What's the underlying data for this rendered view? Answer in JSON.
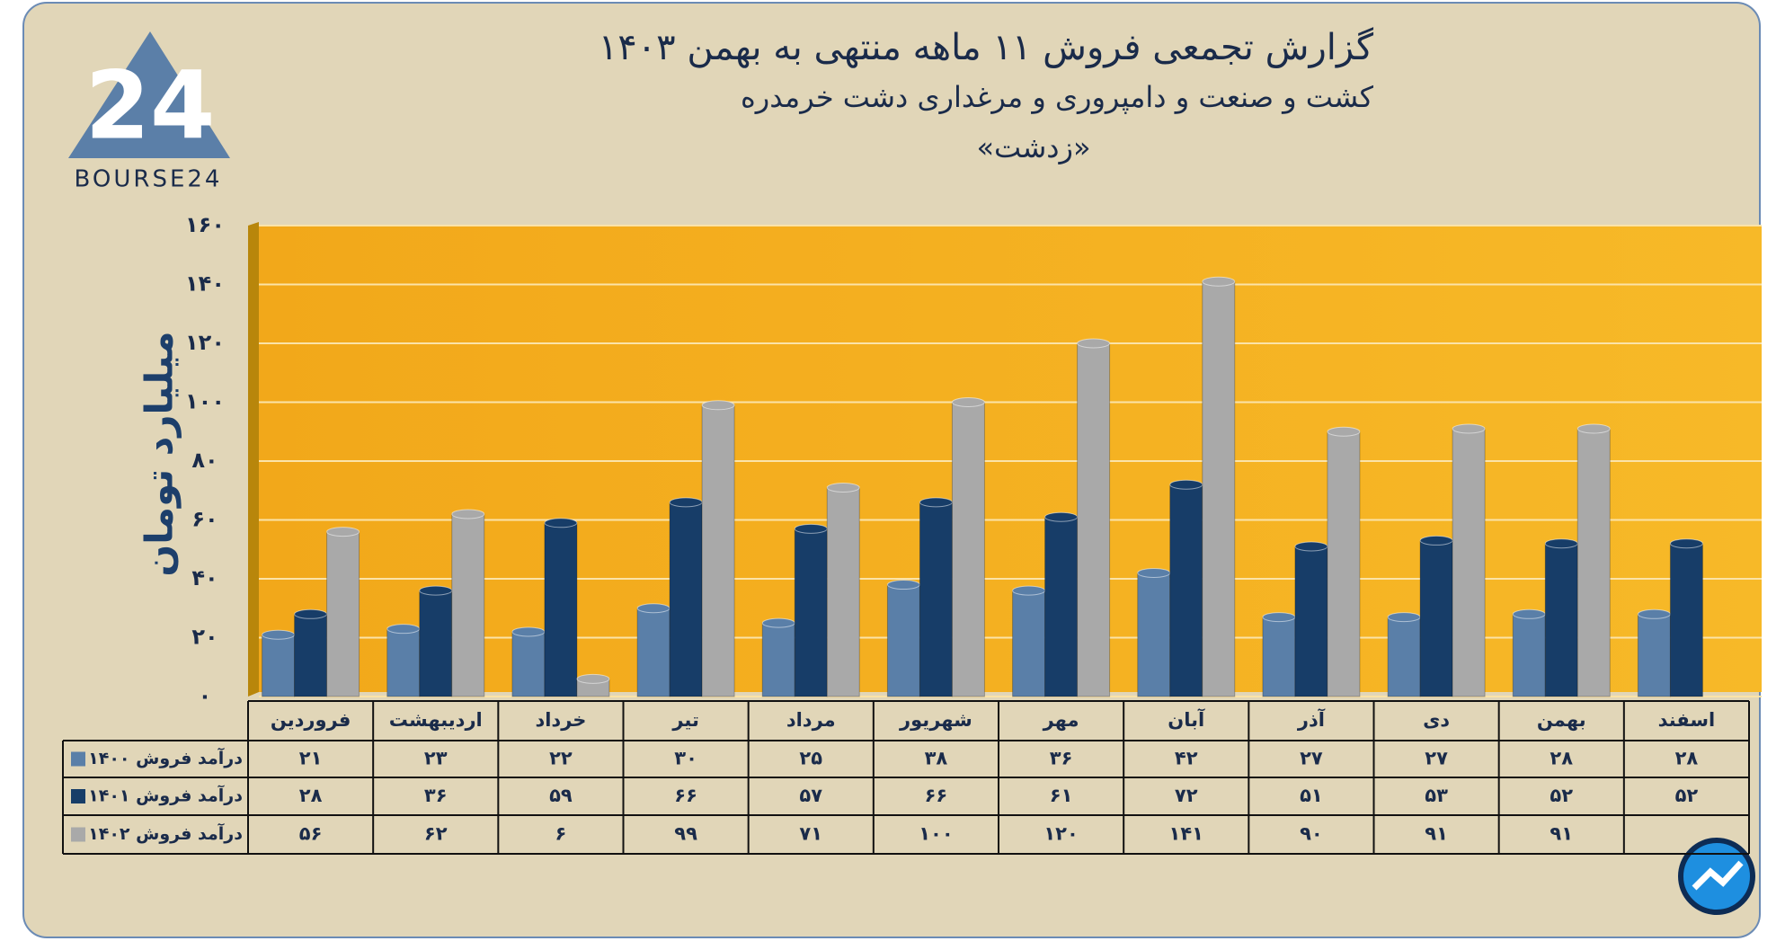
{
  "logo": "BOURSE24",
  "chart_data": {
    "type": "bar",
    "title": "گزارش تجمعی فروش ۱۱ ماهه منتهی به بهمن ۱۴۰۳",
    "subtitle": "کشت و صنعت و دامپروری و مرغداری دشت خرمدره",
    "subtitle2": "«زدشت»",
    "y_label": "میلیارد تومان",
    "categories": [
      "فروردین",
      "اردیبهشت",
      "خرداد",
      "تیر",
      "مرداد",
      "شهریور",
      "مهر",
      "آبان",
      "آذر",
      "دی",
      "بهمن",
      "اسفند"
    ],
    "series": [
      {
        "name": "درآمد فروش ۱۴۰۰",
        "color": "#5a7fa8",
        "values": [
          21,
          23,
          22,
          30,
          25,
          38,
          36,
          42,
          27,
          27,
          28,
          28
        ],
        "value_labels": [
          "۲۱",
          "۲۳",
          "۲۲",
          "۳۰",
          "۲۵",
          "۳۸",
          "۳۶",
          "۴۲",
          "۲۷",
          "۲۷",
          "۲۸",
          "۲۸"
        ]
      },
      {
        "name": "درآمد فروش ۱۴۰۱",
        "color": "#173d68",
        "values": [
          28,
          36,
          59,
          66,
          57,
          66,
          61,
          72,
          51,
          53,
          52,
          52
        ],
        "value_labels": [
          "۲۸",
          "۳۶",
          "۵۹",
          "۶۶",
          "۵۷",
          "۶۶",
          "۶۱",
          "۷۲",
          "۵۱",
          "۵۳",
          "۵۲",
          "۵۲"
        ]
      },
      {
        "name": "درآمد فروش ۱۴۰۲",
        "color": "#a9a9a9",
        "values": [
          56,
          62,
          6,
          99,
          71,
          100,
          120,
          141,
          90,
          91,
          91,
          null
        ],
        "value_labels": [
          "۵۶",
          "۶۲",
          "۶",
          "۹۹",
          "۷۱",
          "۱۰۰",
          "۱۲۰",
          "۱۴۱",
          "۹۰",
          "۹۱",
          "۹۱",
          null
        ]
      }
    ],
    "ylim": [
      0,
      160
    ],
    "yticks": [
      {
        "value": 0,
        "label": "۰"
      },
      {
        "value": 20,
        "label": "۲۰"
      },
      {
        "value": 40,
        "label": "۴۰"
      },
      {
        "value": 60,
        "label": "۶۰"
      },
      {
        "value": 80,
        "label": "۸۰"
      },
      {
        "value": 100,
        "label": "۱۰۰"
      },
      {
        "value": 120,
        "label": "۱۲۰"
      },
      {
        "value": 140,
        "label": "۱۴۰"
      },
      {
        "value": 160,
        "label": "۱۶۰"
      }
    ],
    "grid": true
  }
}
